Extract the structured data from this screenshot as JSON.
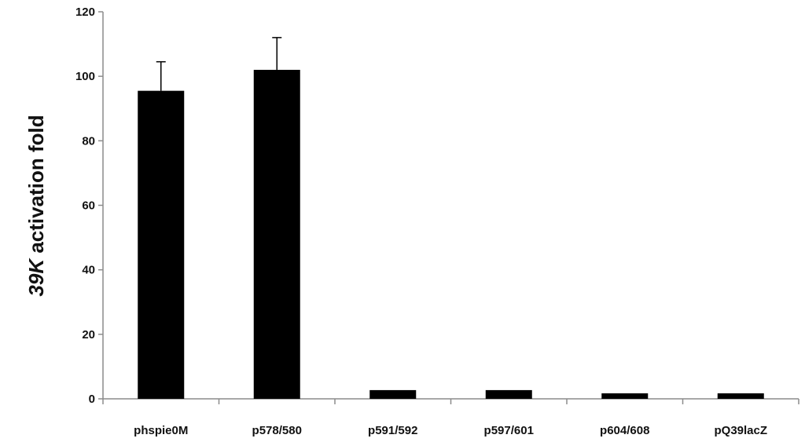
{
  "chart_data": {
    "type": "bar",
    "categories": [
      "phspie0M",
      "p578/580",
      "p591/592",
      "p597/601",
      "p604/608",
      "pQ39lacZ"
    ],
    "values": [
      95.5,
      102,
      2.7,
      2.7,
      1.7,
      1.7
    ],
    "error_bars": [
      9,
      10,
      null,
      null,
      null,
      null
    ],
    "title": "",
    "xlabel": "",
    "ylabel": {
      "italic": "39K",
      "rest": " activation fold"
    },
    "ylim": [
      0,
      120
    ],
    "yticks": [
      0,
      20,
      40,
      60,
      80,
      100,
      120
    ],
    "grid": false,
    "legend": "none",
    "colors": {
      "bar": "#000000",
      "axis": "#8c8c8c",
      "text": "#111111"
    }
  }
}
